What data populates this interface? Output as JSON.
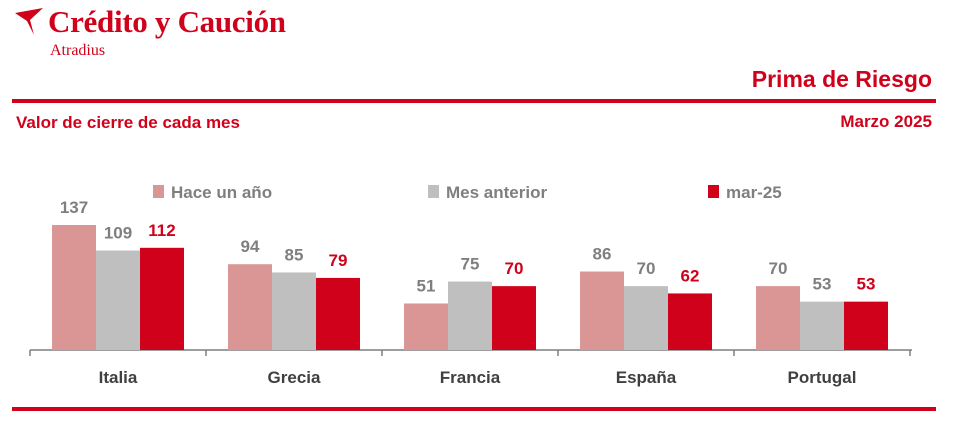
{
  "header": {
    "brand_name": "Crédito y Caución",
    "brand_sub": "Atradius",
    "report_title": "Prima de Riesgo",
    "subtitle": "Valor de cierre de cada mes",
    "date": "Marzo 2025"
  },
  "icons": {
    "brand": "paper-plane-logo-icon"
  },
  "colors": {
    "brand": "#d0021b",
    "series": [
      "#d99694",
      "#bfbfbf",
      "#d0021b"
    ],
    "label_gray": "#7f7f7f",
    "label_red": "#d0021b"
  },
  "chart_data": {
    "type": "bar",
    "categories": [
      "Italia",
      "Grecia",
      "Francia",
      "España",
      "Portugal"
    ],
    "series": [
      {
        "name": "Hace un año",
        "values": [
          137,
          94,
          51,
          86,
          70
        ]
      },
      {
        "name": "Mes anterior",
        "values": [
          109,
          85,
          75,
          70,
          53
        ]
      },
      {
        "name": "mar-25",
        "values": [
          112,
          79,
          70,
          62,
          53
        ]
      }
    ],
    "legend_position": "top",
    "grid": false,
    "ylim": [
      0,
      137
    ]
  }
}
